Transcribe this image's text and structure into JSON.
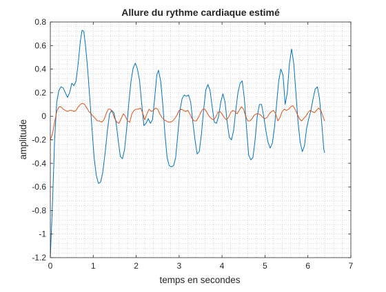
{
  "chart_data": {
    "type": "line",
    "title": "Allure du rythme cardiaque estimé",
    "xlabel": "temps en secondes",
    "ylabel": "amplitude",
    "xlim": [
      0,
      7
    ],
    "ylim": [
      -1.2,
      0.8
    ],
    "xticks": [
      "0",
      "1",
      "2",
      "3",
      "4",
      "5",
      "6",
      "7"
    ],
    "yticks": [
      "0.8",
      "0.6",
      "0.4",
      "0.2",
      "0",
      "-0.2",
      "-0.4",
      "-0.6",
      "-0.8",
      "-1",
      "-1.2"
    ],
    "grid": "dotted minor",
    "series": [
      {
        "color": "#0072bd",
        "points": [
          [
            0.0,
            -1.2
          ],
          [
            0.05,
            -0.75
          ],
          [
            0.1,
            -0.2
          ],
          [
            0.15,
            0.12
          ],
          [
            0.2,
            0.22
          ],
          [
            0.25,
            0.25
          ],
          [
            0.3,
            0.24
          ],
          [
            0.35,
            0.2
          ],
          [
            0.4,
            0.16
          ],
          [
            0.45,
            0.2
          ],
          [
            0.5,
            0.28
          ],
          [
            0.55,
            0.26
          ],
          [
            0.6,
            0.3
          ],
          [
            0.65,
            0.45
          ],
          [
            0.7,
            0.64
          ],
          [
            0.74,
            0.73
          ],
          [
            0.78,
            0.72
          ],
          [
            0.82,
            0.6
          ],
          [
            0.87,
            0.4
          ],
          [
            0.92,
            0.15
          ],
          [
            0.97,
            -0.1
          ],
          [
            1.02,
            -0.35
          ],
          [
            1.07,
            -0.5
          ],
          [
            1.12,
            -0.57
          ],
          [
            1.17,
            -0.56
          ],
          [
            1.22,
            -0.48
          ],
          [
            1.28,
            -0.3
          ],
          [
            1.33,
            -0.12
          ],
          [
            1.38,
            0.02
          ],
          [
            1.43,
            0.05
          ],
          [
            1.48,
            0.03
          ],
          [
            1.53,
            -0.05
          ],
          [
            1.58,
            -0.2
          ],
          [
            1.63,
            -0.34
          ],
          [
            1.68,
            -0.36
          ],
          [
            1.73,
            -0.28
          ],
          [
            1.78,
            -0.1
          ],
          [
            1.83,
            0.12
          ],
          [
            1.88,
            0.3
          ],
          [
            1.93,
            0.41
          ],
          [
            1.98,
            0.45
          ],
          [
            2.03,
            0.4
          ],
          [
            2.08,
            0.3
          ],
          [
            2.13,
            0.1
          ],
          [
            2.18,
            -0.08
          ],
          [
            2.23,
            -0.06
          ],
          [
            2.28,
            -0.02
          ],
          [
            2.33,
            -0.06
          ],
          [
            2.38,
            -0.03
          ],
          [
            2.43,
            0.15
          ],
          [
            2.48,
            0.35
          ],
          [
            2.52,
            0.39
          ],
          [
            2.57,
            0.3
          ],
          [
            2.62,
            0.1
          ],
          [
            2.67,
            -0.15
          ],
          [
            2.72,
            -0.35
          ],
          [
            2.77,
            -0.42
          ],
          [
            2.82,
            -0.43
          ],
          [
            2.87,
            -0.42
          ],
          [
            2.92,
            -0.35
          ],
          [
            2.97,
            -0.15
          ],
          [
            3.02,
            0.05
          ],
          [
            3.07,
            0.15
          ],
          [
            3.12,
            0.18
          ],
          [
            3.17,
            0.17
          ],
          [
            3.22,
            0.18
          ],
          [
            3.27,
            0.12
          ],
          [
            3.32,
            -0.05
          ],
          [
            3.37,
            -0.2
          ],
          [
            3.42,
            -0.32
          ],
          [
            3.47,
            -0.3
          ],
          [
            3.52,
            -0.15
          ],
          [
            3.57,
            0.05
          ],
          [
            3.62,
            0.22
          ],
          [
            3.67,
            0.27
          ],
          [
            3.72,
            0.22
          ],
          [
            3.77,
            0.08
          ],
          [
            3.82,
            -0.05
          ],
          [
            3.87,
            -0.06
          ],
          [
            3.92,
            0.0
          ],
          [
            3.97,
            0.12
          ],
          [
            4.02,
            0.19
          ],
          [
            4.07,
            0.12
          ],
          [
            4.12,
            -0.05
          ],
          [
            4.17,
            -0.18
          ],
          [
            4.22,
            -0.2
          ],
          [
            4.27,
            -0.12
          ],
          [
            4.32,
            0.05
          ],
          [
            4.37,
            0.2
          ],
          [
            4.42,
            0.28
          ],
          [
            4.47,
            0.3
          ],
          [
            4.52,
            0.15
          ],
          [
            4.57,
            -0.1
          ],
          [
            4.62,
            -0.33
          ],
          [
            4.67,
            -0.37
          ],
          [
            4.72,
            -0.35
          ],
          [
            4.77,
            -0.2
          ],
          [
            4.82,
            0.0
          ],
          [
            4.87,
            0.1
          ],
          [
            4.92,
            0.1
          ],
          [
            4.97,
            0.0
          ],
          [
            5.02,
            -0.12
          ],
          [
            5.07,
            -0.22
          ],
          [
            5.12,
            -0.27
          ],
          [
            5.17,
            -0.23
          ],
          [
            5.22,
            -0.1
          ],
          [
            5.27,
            0.1
          ],
          [
            5.32,
            0.3
          ],
          [
            5.37,
            0.4
          ],
          [
            5.42,
            0.35
          ],
          [
            5.47,
            0.1
          ],
          [
            5.52,
            0.2
          ],
          [
            5.57,
            0.45
          ],
          [
            5.62,
            0.57
          ],
          [
            5.67,
            0.45
          ],
          [
            5.72,
            0.2
          ],
          [
            5.77,
            -0.05
          ],
          [
            5.82,
            -0.22
          ],
          [
            5.87,
            -0.3
          ],
          [
            5.92,
            -0.25
          ],
          [
            5.97,
            -0.1
          ],
          [
            6.02,
            -0.02
          ],
          [
            6.07,
            0.05
          ],
          [
            6.12,
            0.15
          ],
          [
            6.17,
            0.23
          ],
          [
            6.22,
            0.25
          ],
          [
            6.27,
            0.15
          ],
          [
            6.32,
            -0.05
          ],
          [
            6.37,
            -0.28
          ],
          [
            6.39,
            -0.31
          ]
        ]
      },
      {
        "color": "#d95319",
        "points": [
          [
            0.0,
            -0.2
          ],
          [
            0.05,
            -0.15
          ],
          [
            0.1,
            -0.05
          ],
          [
            0.15,
            0.04
          ],
          [
            0.2,
            0.08
          ],
          [
            0.25,
            0.08
          ],
          [
            0.3,
            0.06
          ],
          [
            0.35,
            0.05
          ],
          [
            0.4,
            0.04
          ],
          [
            0.45,
            0.05
          ],
          [
            0.5,
            0.05
          ],
          [
            0.55,
            0.04
          ],
          [
            0.6,
            0.05
          ],
          [
            0.65,
            0.08
          ],
          [
            0.7,
            0.1
          ],
          [
            0.75,
            0.11
          ],
          [
            0.8,
            0.1
          ],
          [
            0.85,
            0.07
          ],
          [
            0.9,
            0.04
          ],
          [
            0.95,
            0.02
          ],
          [
            1.0,
            0.0
          ],
          [
            1.05,
            -0.02
          ],
          [
            1.1,
            -0.04
          ],
          [
            1.15,
            -0.04
          ],
          [
            1.2,
            -0.05
          ],
          [
            1.25,
            -0.03
          ],
          [
            1.3,
            0.02
          ],
          [
            1.35,
            0.06
          ],
          [
            1.4,
            0.06
          ],
          [
            1.45,
            0.03
          ],
          [
            1.5,
            -0.02
          ],
          [
            1.55,
            -0.05
          ],
          [
            1.6,
            -0.06
          ],
          [
            1.65,
            -0.02
          ],
          [
            1.7,
            0.02
          ],
          [
            1.75,
            0.0
          ],
          [
            1.8,
            -0.04
          ],
          [
            1.85,
            -0.05
          ],
          [
            1.9,
            0.02
          ],
          [
            1.95,
            0.05
          ],
          [
            2.0,
            0.06
          ],
          [
            2.05,
            0.06
          ],
          [
            2.1,
            0.07
          ],
          [
            2.15,
            0.03
          ],
          [
            2.2,
            -0.03
          ],
          [
            2.25,
            0.02
          ],
          [
            2.3,
            0.06
          ],
          [
            2.35,
            0.04
          ],
          [
            2.4,
            0.05
          ],
          [
            2.45,
            0.07
          ],
          [
            2.5,
            0.06
          ],
          [
            2.55,
            0.02
          ],
          [
            2.6,
            -0.01
          ],
          [
            2.65,
            -0.03
          ],
          [
            2.7,
            -0.04
          ],
          [
            2.75,
            -0.05
          ],
          [
            2.8,
            -0.05
          ],
          [
            2.85,
            -0.04
          ],
          [
            2.9,
            -0.02
          ],
          [
            2.95,
            0.01
          ],
          [
            3.0,
            0.05
          ],
          [
            3.05,
            0.06
          ],
          [
            3.1,
            0.05
          ],
          [
            3.15,
            0.04
          ],
          [
            3.2,
            0.05
          ],
          [
            3.25,
            0.02
          ],
          [
            3.3,
            -0.02
          ],
          [
            3.35,
            -0.04
          ],
          [
            3.4,
            -0.04
          ],
          [
            3.45,
            -0.01
          ],
          [
            3.5,
            0.03
          ],
          [
            3.55,
            0.06
          ],
          [
            3.6,
            0.06
          ],
          [
            3.65,
            0.03
          ],
          [
            3.7,
            0.0
          ],
          [
            3.75,
            -0.02
          ],
          [
            3.8,
            -0.03
          ],
          [
            3.85,
            -0.01
          ],
          [
            3.9,
            0.03
          ],
          [
            3.95,
            0.04
          ],
          [
            4.0,
            0.02
          ],
          [
            4.05,
            -0.01
          ],
          [
            4.1,
            -0.03
          ],
          [
            4.15,
            -0.01
          ],
          [
            4.2,
            0.03
          ],
          [
            4.25,
            0.05
          ],
          [
            4.3,
            0.04
          ],
          [
            4.35,
            0.02
          ],
          [
            4.4,
            0.05
          ],
          [
            4.45,
            0.08
          ],
          [
            4.5,
            0.06
          ],
          [
            4.55,
            0.0
          ],
          [
            4.6,
            -0.04
          ],
          [
            4.65,
            -0.04
          ],
          [
            4.7,
            -0.02
          ],
          [
            4.75,
            0.01
          ],
          [
            4.8,
            0.02
          ],
          [
            4.85,
            0.02
          ],
          [
            4.9,
            0.01
          ],
          [
            4.95,
            -0.01
          ],
          [
            5.0,
            -0.02
          ],
          [
            5.05,
            -0.01
          ],
          [
            5.1,
            0.02
          ],
          [
            5.15,
            0.04
          ],
          [
            5.2,
            0.05
          ],
          [
            5.25,
            0.02
          ],
          [
            5.3,
            -0.04
          ],
          [
            5.35,
            -0.01
          ],
          [
            5.4,
            0.04
          ],
          [
            5.45,
            0.06
          ],
          [
            5.5,
            0.05
          ],
          [
            5.55,
            0.06
          ],
          [
            5.6,
            0.08
          ],
          [
            5.65,
            0.09
          ],
          [
            5.7,
            0.06
          ],
          [
            5.75,
            0.02
          ],
          [
            5.8,
            -0.02
          ],
          [
            5.85,
            -0.04
          ],
          [
            5.9,
            -0.02
          ],
          [
            5.95,
            0.0
          ],
          [
            6.0,
            0.03
          ],
          [
            6.05,
            0.05
          ],
          [
            6.1,
            0.04
          ],
          [
            6.15,
            0.03
          ],
          [
            6.2,
            0.05
          ],
          [
            6.25,
            0.07
          ],
          [
            6.3,
            0.05
          ],
          [
            6.35,
            0.0
          ],
          [
            6.39,
            -0.04
          ]
        ]
      }
    ]
  }
}
